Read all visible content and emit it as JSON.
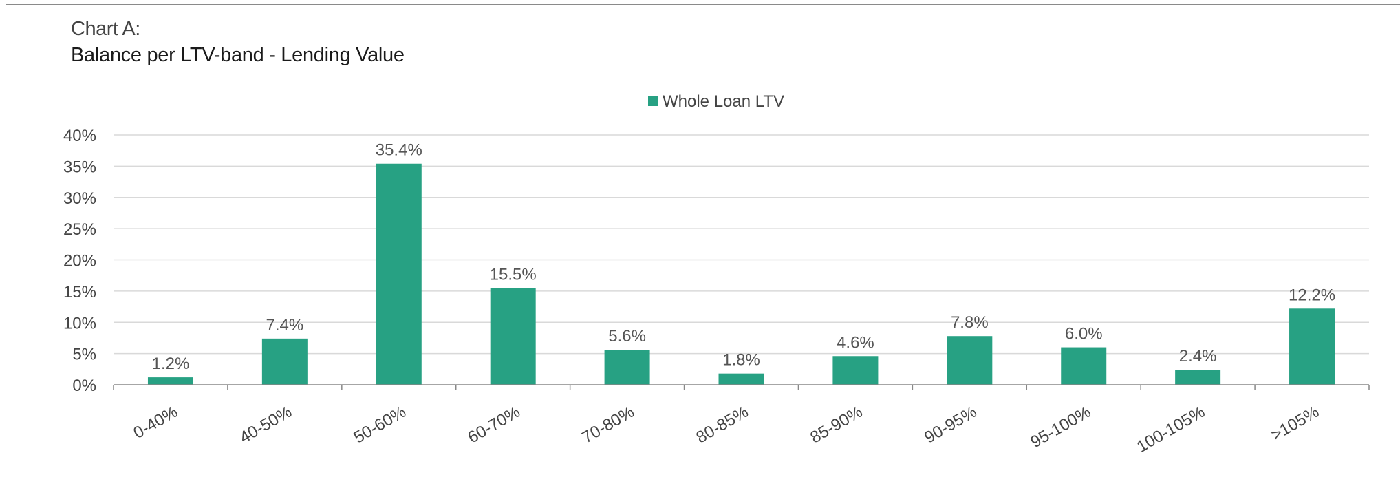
{
  "chart_prefix": "Chart A:",
  "chart_data": {
    "type": "bar",
    "title": "Balance per LTV-band - Lending Value",
    "categories": [
      "0-40%",
      "40-50%",
      "50-60%",
      "60-70%",
      "70-80%",
      "80-85%",
      "85-90%",
      "90-95%",
      "95-100%",
      "100-105%",
      ">105%"
    ],
    "series": [
      {
        "name": "Whole Loan LTV",
        "values": [
          1.2,
          7.4,
          35.4,
          15.5,
          5.6,
          1.8,
          4.6,
          7.8,
          6.0,
          2.4,
          12.2
        ],
        "labels": [
          "1.2%",
          "7.4%",
          "35.4%",
          "15.5%",
          "5.6%",
          "1.8%",
          "4.6%",
          "7.8%",
          "6.0%",
          "2.4%",
          "12.2%"
        ],
        "color": "#27a183"
      }
    ],
    "yticks": [
      "0%",
      "5%",
      "10%",
      "15%",
      "20%",
      "25%",
      "30%",
      "35%",
      "40%"
    ],
    "ylim": [
      0,
      40
    ],
    "xlabel": "",
    "ylabel": "",
    "grid": true,
    "legend_position": "top-center"
  }
}
